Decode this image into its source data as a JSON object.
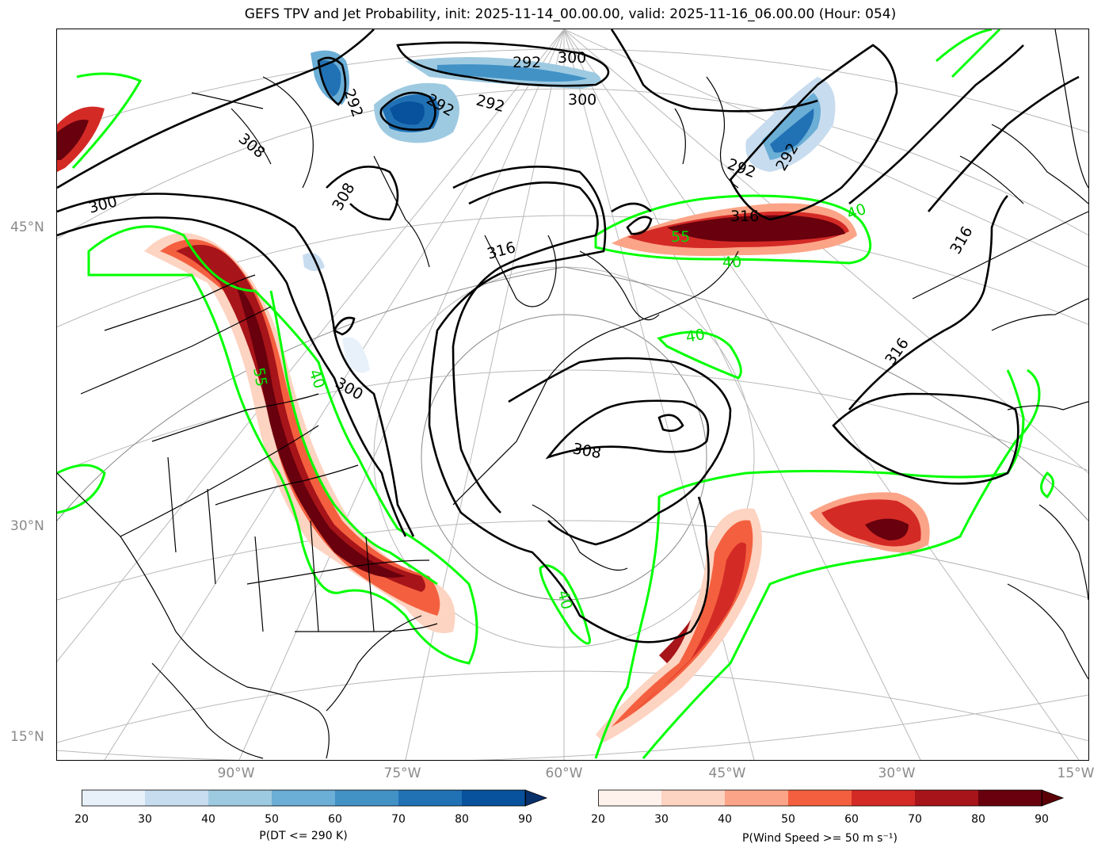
{
  "title": "GEFS TPV and Jet Probability, init: 2025-11-14_00.00.00, valid: 2025-11-16_06.00.00 (Hour: 054)",
  "lat_labels": [
    "45°N",
    "30°N",
    "15°N"
  ],
  "lon_labels": [
    "90°W",
    "75°W",
    "60°W",
    "45°W",
    "30°W",
    "15°W"
  ],
  "theta_contour_labels": [
    "292",
    "292",
    "292",
    "292",
    "292",
    "292",
    "300",
    "300",
    "300",
    "300",
    "308",
    "308",
    "308",
    "316",
    "316",
    "316",
    "316"
  ],
  "jet_contour_labels": [
    "55",
    "55",
    "40",
    "40",
    "40",
    "40",
    "40"
  ],
  "colorbar_tpv": {
    "label": "P(DT <= 290 K)",
    "ticks": [
      "20",
      "30",
      "40",
      "50",
      "60",
      "70",
      "80",
      "90"
    ],
    "colors": [
      "#e8f1fa",
      "#c8dcef",
      "#9ecae1",
      "#6baed6",
      "#4292c6",
      "#2171b5",
      "#08519c"
    ]
  },
  "colorbar_jet": {
    "label": "P(Wind Speed >= 50 m s⁻¹)",
    "ticks": [
      "20",
      "30",
      "40",
      "50",
      "60",
      "70",
      "80",
      "90"
    ],
    "colors": [
      "#fff2ec",
      "#fdd3c1",
      "#fca487",
      "#f4603f",
      "#d42a26",
      "#a71419",
      "#68000d"
    ]
  },
  "colors": {
    "jet_contour": "#00ff00",
    "theta_contour": "#000000",
    "graticule": "#b0b0b0"
  }
}
